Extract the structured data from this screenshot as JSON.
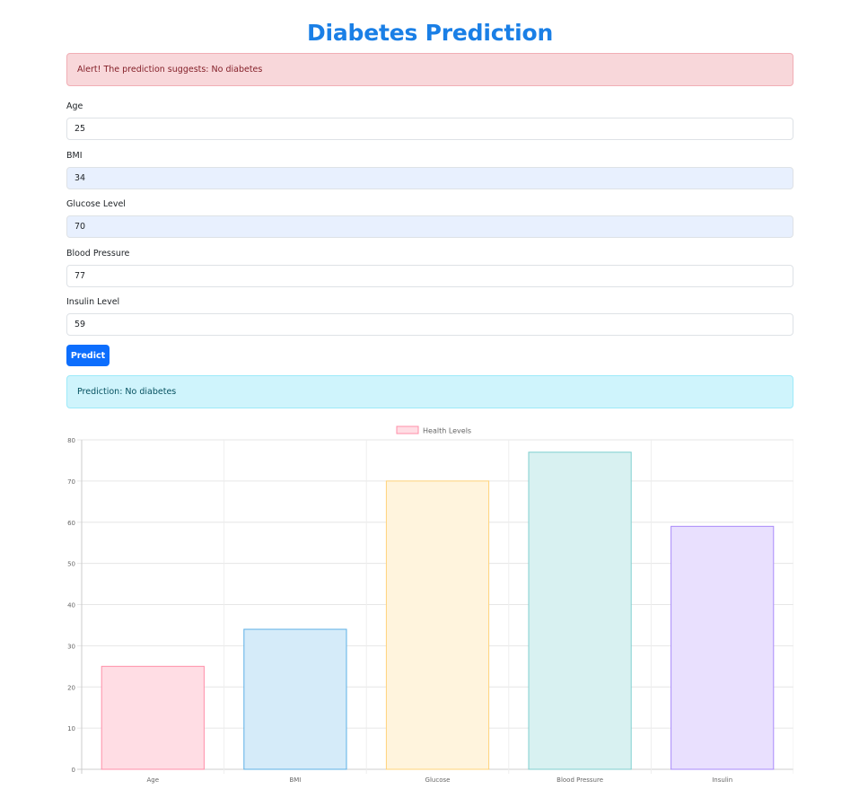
{
  "page": {
    "title": "Diabetes Prediction"
  },
  "alert": {
    "text": "Alert! The prediction suggests: No diabetes"
  },
  "form": {
    "fields": [
      {
        "label": "Age",
        "value": "25",
        "autofill": false
      },
      {
        "label": "BMI",
        "value": "34",
        "autofill": true
      },
      {
        "label": "Glucose Level",
        "value": "70",
        "autofill": true
      },
      {
        "label": "Blood Pressure",
        "value": "77",
        "autofill": false
      },
      {
        "label": "Insulin Level",
        "value": "59",
        "autofill": false
      }
    ],
    "submit_label": "Predict"
  },
  "result": {
    "text": "Prediction: No diabetes"
  },
  "chart_data": {
    "type": "bar",
    "categories": [
      "Age",
      "BMI",
      "Glucose",
      "Blood Pressure",
      "Insulin"
    ],
    "series": [
      {
        "name": "Health Levels",
        "values": [
          25,
          34,
          70,
          77,
          59
        ]
      }
    ],
    "ylim": [
      0,
      80
    ],
    "yticks": [
      0,
      10,
      20,
      30,
      40,
      50,
      60,
      70,
      80
    ],
    "grid": true,
    "legend": "top-center",
    "colors": {
      "fills": [
        "#ffdde4",
        "#d5ebf9",
        "#fff4dd",
        "#d8f1f1",
        "#e9e0fe"
      ],
      "strokes": [
        "#ff8fa8",
        "#5db0e6",
        "#ffd37a",
        "#7fcfcf",
        "#a98bfa"
      ]
    }
  }
}
